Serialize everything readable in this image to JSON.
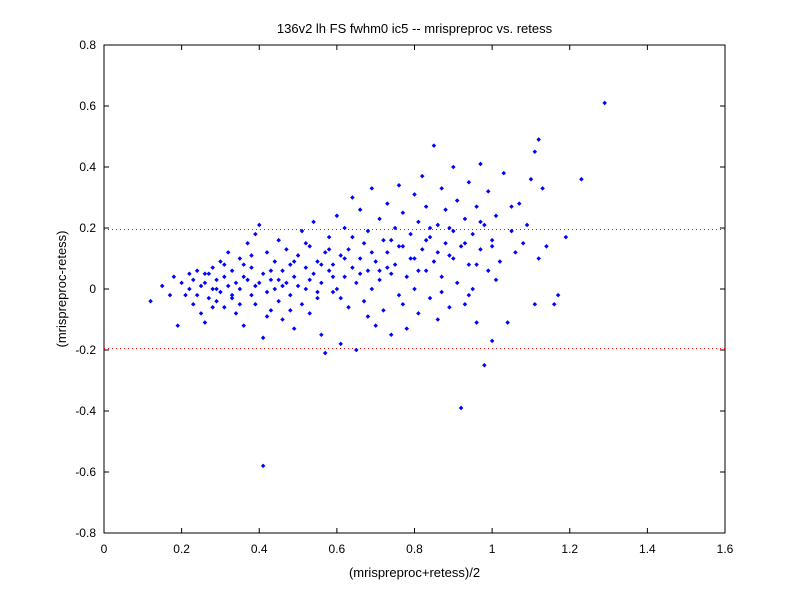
{
  "chart_data": {
    "type": "scatter",
    "title": "136v2 lh FS fwhm0 ic5 -- mrispreproc vs. retess",
    "xlabel": "(mrispreproc+retess)/2",
    "ylabel": "(mrispreproc-retess)",
    "xlim": [
      0,
      1.6
    ],
    "ylim": [
      -0.8,
      0.8
    ],
    "xticks": [
      "0",
      "0.2",
      "0.4",
      "0.6",
      "0.8",
      "1",
      "1.2",
      "1.4",
      "1.6"
    ],
    "yticks": [
      "-0.8",
      "-0.6",
      "-0.4",
      "-0.2",
      "0",
      "0.2",
      "0.4",
      "0.6",
      "0.8"
    ],
    "grid": false,
    "marker_color": "#0000ff",
    "reference_lines": {
      "y": [
        0.195,
        -0.195
      ],
      "color": "#ff0000",
      "style": "dotted"
    },
    "series": [
      {
        "points": [
          [
            0.12,
            -0.04
          ],
          [
            0.15,
            0.01
          ],
          [
            0.17,
            -0.02
          ],
          [
            0.18,
            0.04
          ],
          [
            0.19,
            -0.12
          ],
          [
            0.2,
            0.02
          ],
          [
            0.21,
            -0.02
          ],
          [
            0.22,
            0.05
          ],
          [
            0.22,
            0.0
          ],
          [
            0.23,
            -0.05
          ],
          [
            0.23,
            0.03
          ],
          [
            0.24,
            -0.02
          ],
          [
            0.24,
            0.06
          ],
          [
            0.25,
            0.01
          ],
          [
            0.25,
            -0.08
          ],
          [
            0.26,
            0.02
          ],
          [
            0.26,
            -0.11
          ],
          [
            0.27,
            0.05
          ],
          [
            0.27,
            -0.03
          ],
          [
            0.28,
            0.0
          ],
          [
            0.28,
            0.07
          ],
          [
            0.29,
            -0.04
          ],
          [
            0.29,
            0.03
          ],
          [
            0.3,
            0.09
          ],
          [
            0.3,
            -0.01
          ],
          [
            0.31,
            0.04
          ],
          [
            0.31,
            -0.06
          ],
          [
            0.32,
            0.01
          ],
          [
            0.32,
            0.12
          ],
          [
            0.33,
            -0.03
          ],
          [
            0.33,
            0.06
          ],
          [
            0.34,
            0.02
          ],
          [
            0.34,
            -0.08
          ],
          [
            0.35,
            0.1
          ],
          [
            0.35,
            0.0
          ],
          [
            0.36,
            0.04
          ],
          [
            0.36,
            -0.12
          ],
          [
            0.37,
            0.15
          ],
          [
            0.37,
            0.03
          ],
          [
            0.38,
            -0.02
          ],
          [
            0.38,
            0.07
          ],
          [
            0.39,
            0.18
          ],
          [
            0.39,
            -0.05
          ],
          [
            0.4,
            0.02
          ],
          [
            0.4,
            0.21
          ],
          [
            0.41,
            -0.16
          ],
          [
            0.41,
            0.05
          ],
          [
            0.42,
            -0.01
          ],
          [
            0.42,
            0.12
          ],
          [
            0.43,
            0.03
          ],
          [
            0.43,
            -0.07
          ],
          [
            0.44,
            0.09
          ],
          [
            0.44,
            0.0
          ],
          [
            0.45,
            0.16
          ],
          [
            0.45,
            -0.04
          ],
          [
            0.46,
            0.06
          ],
          [
            0.46,
            -0.1
          ],
          [
            0.47,
            0.02
          ],
          [
            0.47,
            0.13
          ],
          [
            0.48,
            -0.02
          ],
          [
            0.48,
            0.08
          ],
          [
            0.49,
            0.04
          ],
          [
            0.49,
            -0.13
          ],
          [
            0.5,
            0.11
          ],
          [
            0.5,
            0.01
          ],
          [
            0.51,
            0.19
          ],
          [
            0.51,
            -0.05
          ],
          [
            0.52,
            0.07
          ],
          [
            0.52,
            0.0
          ],
          [
            0.53,
            0.14
          ],
          [
            0.53,
            -0.08
          ],
          [
            0.54,
            0.05
          ],
          [
            0.54,
            0.22
          ],
          [
            0.55,
            -0.03
          ],
          [
            0.55,
            0.09
          ],
          [
            0.56,
            0.02
          ],
          [
            0.56,
            -0.15
          ],
          [
            0.57,
            0.12
          ],
          [
            0.57,
            -0.21
          ],
          [
            0.58,
            0.06
          ],
          [
            0.58,
            0.17
          ],
          [
            0.59,
            -0.01
          ],
          [
            0.59,
            0.08
          ],
          [
            0.6,
            0.24
          ],
          [
            0.6,
            0.0
          ],
          [
            0.61,
            -0.18
          ],
          [
            0.61,
            0.11
          ],
          [
            0.62,
            0.04
          ],
          [
            0.62,
            0.2
          ],
          [
            0.63,
            -0.06
          ],
          [
            0.63,
            0.13
          ],
          [
            0.64,
            0.07
          ],
          [
            0.64,
            0.3
          ],
          [
            0.65,
            -0.2
          ],
          [
            0.65,
            0.02
          ],
          [
            0.66,
            0.1
          ],
          [
            0.66,
            0.26
          ],
          [
            0.67,
            -0.04
          ],
          [
            0.67,
            0.15
          ],
          [
            0.68,
            0.06
          ],
          [
            0.68,
            0.19
          ],
          [
            0.69,
            0.0
          ],
          [
            0.69,
            0.33
          ],
          [
            0.7,
            -0.12
          ],
          [
            0.7,
            0.09
          ],
          [
            0.71,
            0.23
          ],
          [
            0.71,
            0.03
          ],
          [
            0.72,
            0.16
          ],
          [
            0.72,
            -0.07
          ],
          [
            0.73,
            0.12
          ],
          [
            0.73,
            0.28
          ],
          [
            0.74,
            0.05
          ],
          [
            0.74,
            -0.15
          ],
          [
            0.75,
            0.2
          ],
          [
            0.75,
            0.08
          ],
          [
            0.76,
            0.34
          ],
          [
            0.76,
            -0.02
          ],
          [
            0.77,
            0.14
          ],
          [
            0.77,
            0.25
          ],
          [
            0.78,
            0.04
          ],
          [
            0.78,
            -0.13
          ],
          [
            0.79,
            0.18
          ],
          [
            0.79,
            0.1
          ],
          [
            0.8,
            0.31
          ],
          [
            0.8,
            0.0
          ],
          [
            0.81,
            0.22
          ],
          [
            0.81,
            -0.08
          ],
          [
            0.82,
            0.13
          ],
          [
            0.82,
            0.37
          ],
          [
            0.83,
            0.06
          ],
          [
            0.83,
            0.27
          ],
          [
            0.84,
            -0.03
          ],
          [
            0.84,
            0.17
          ],
          [
            0.85,
            0.47
          ],
          [
            0.85,
            0.09
          ],
          [
            0.86,
            0.21
          ],
          [
            0.86,
            -0.1
          ],
          [
            0.87,
            0.33
          ],
          [
            0.87,
            0.04
          ],
          [
            0.88,
            0.15
          ],
          [
            0.88,
            0.26
          ],
          [
            0.89,
            -0.06
          ],
          [
            0.89,
            0.11
          ],
          [
            0.9,
            0.4
          ],
          [
            0.9,
            0.19
          ],
          [
            0.91,
            0.02
          ],
          [
            0.91,
            0.29
          ],
          [
            0.92,
            -0.39
          ],
          [
            0.92,
            0.14
          ],
          [
            0.93,
            0.23
          ],
          [
            0.93,
            -0.05
          ],
          [
            0.94,
            0.35
          ],
          [
            0.94,
            0.08
          ],
          [
            0.95,
            0.18
          ],
          [
            0.95,
            0.0
          ],
          [
            0.96,
            0.27
          ],
          [
            0.96,
            -0.11
          ],
          [
            0.97,
            0.41
          ],
          [
            0.97,
            0.13
          ],
          [
            0.98,
            -0.25
          ],
          [
            0.98,
            0.21
          ],
          [
            0.99,
            0.06
          ],
          [
            0.99,
            0.32
          ],
          [
            1.0,
            -0.17
          ],
          [
            1.0,
            0.16
          ],
          [
            1.01,
            0.24
          ],
          [
            1.02,
            0.09
          ],
          [
            1.03,
            0.38
          ],
          [
            1.04,
            -0.11
          ],
          [
            1.05,
            0.19
          ],
          [
            1.06,
            0.12
          ],
          [
            1.07,
            0.28
          ],
          [
            1.08,
            0.15
          ],
          [
            1.09,
            0.21
          ],
          [
            1.1,
            0.36
          ],
          [
            1.11,
            0.45
          ],
          [
            1.11,
            -0.05
          ],
          [
            1.12,
            0.49
          ],
          [
            1.12,
            0.1
          ],
          [
            1.13,
            0.33
          ],
          [
            1.14,
            0.14
          ],
          [
            1.16,
            -0.05
          ],
          [
            1.17,
            -0.02
          ],
          [
            1.19,
            0.17
          ],
          [
            1.23,
            0.36
          ],
          [
            1.29,
            0.61
          ],
          [
            0.41,
            -0.58
          ],
          [
            0.26,
            0.05
          ],
          [
            0.29,
            0.0
          ],
          [
            0.33,
            -0.02
          ],
          [
            0.36,
            0.08
          ],
          [
            0.39,
            0.01
          ],
          [
            0.43,
            0.06
          ],
          [
            0.46,
            0.01
          ],
          [
            0.49,
            0.09
          ],
          [
            0.53,
            0.03
          ],
          [
            0.56,
            0.08
          ],
          [
            0.59,
            0.04
          ],
          [
            0.62,
            0.1
          ],
          [
            0.66,
            0.05
          ],
          [
            0.69,
            0.12
          ],
          [
            0.73,
            0.07
          ],
          [
            0.76,
            0.14
          ],
          [
            0.8,
            0.1
          ],
          [
            0.83,
            0.16
          ],
          [
            0.86,
            0.12
          ],
          [
            0.89,
            0.2
          ],
          [
            0.93,
            0.15
          ],
          [
            0.96,
            0.08
          ],
          [
            1.0,
            0.14
          ],
          [
            0.28,
            -0.06
          ],
          [
            0.31,
            0.08
          ],
          [
            0.35,
            -0.05
          ],
          [
            0.38,
            0.11
          ],
          [
            0.42,
            -0.09
          ],
          [
            0.45,
            0.03
          ],
          [
            0.48,
            -0.07
          ],
          [
            0.52,
            0.15
          ],
          [
            0.55,
            -0.01
          ],
          [
            0.58,
            0.13
          ],
          [
            0.61,
            -0.03
          ],
          [
            0.64,
            0.17
          ],
          [
            0.68,
            -0.09
          ],
          [
            0.71,
            0.06
          ],
          [
            0.74,
            0.16
          ],
          [
            0.77,
            -0.05
          ],
          [
            0.81,
            0.06
          ],
          [
            0.84,
            0.2
          ],
          [
            0.87,
            -0.01
          ],
          [
            0.9,
            0.1
          ],
          [
            0.94,
            -0.02
          ],
          [
            0.97,
            0.22
          ],
          [
            1.01,
            0.03
          ],
          [
            1.05,
            0.27
          ]
        ]
      }
    ]
  }
}
